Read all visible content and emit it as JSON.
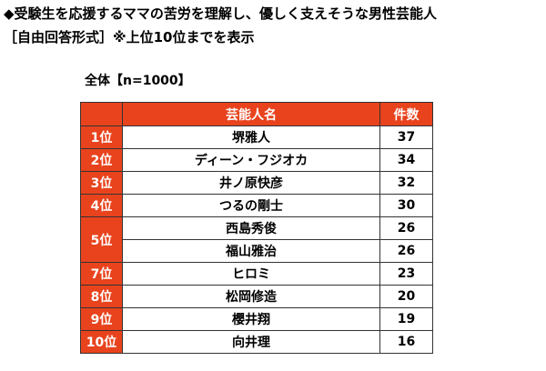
{
  "header": {
    "title": "◆受験生を応援するママの苦労を理解し、優しく支えそうな男性芸能人",
    "subtitle": "［自由回答形式］※上位10位までを表示"
  },
  "table": {
    "caption": "全体【n=1000】",
    "columns": [
      "芸能人名",
      "件数"
    ],
    "groups": [
      {
        "rank": "1位",
        "entries": [
          {
            "name": "堺雅人",
            "count": 37
          }
        ]
      },
      {
        "rank": "2位",
        "entries": [
          {
            "name": "ディーン・フジオカ",
            "count": 34
          }
        ]
      },
      {
        "rank": "3位",
        "entries": [
          {
            "name": "井ノ原快彦",
            "count": 32
          }
        ]
      },
      {
        "rank": "4位",
        "entries": [
          {
            "name": "つるの剛士",
            "count": 30
          }
        ]
      },
      {
        "rank": "5位",
        "entries": [
          {
            "name": "西島秀俊",
            "count": 26
          },
          {
            "name": "福山雅治",
            "count": 26
          }
        ]
      },
      {
        "rank": "7位",
        "entries": [
          {
            "name": "ヒロミ",
            "count": 23
          }
        ]
      },
      {
        "rank": "8位",
        "entries": [
          {
            "name": "松岡修造",
            "count": 20
          }
        ]
      },
      {
        "rank": "9位",
        "entries": [
          {
            "name": "櫻井翔",
            "count": 19
          }
        ]
      },
      {
        "rank": "10位",
        "entries": [
          {
            "name": "向井理",
            "count": 16
          }
        ]
      }
    ]
  }
}
